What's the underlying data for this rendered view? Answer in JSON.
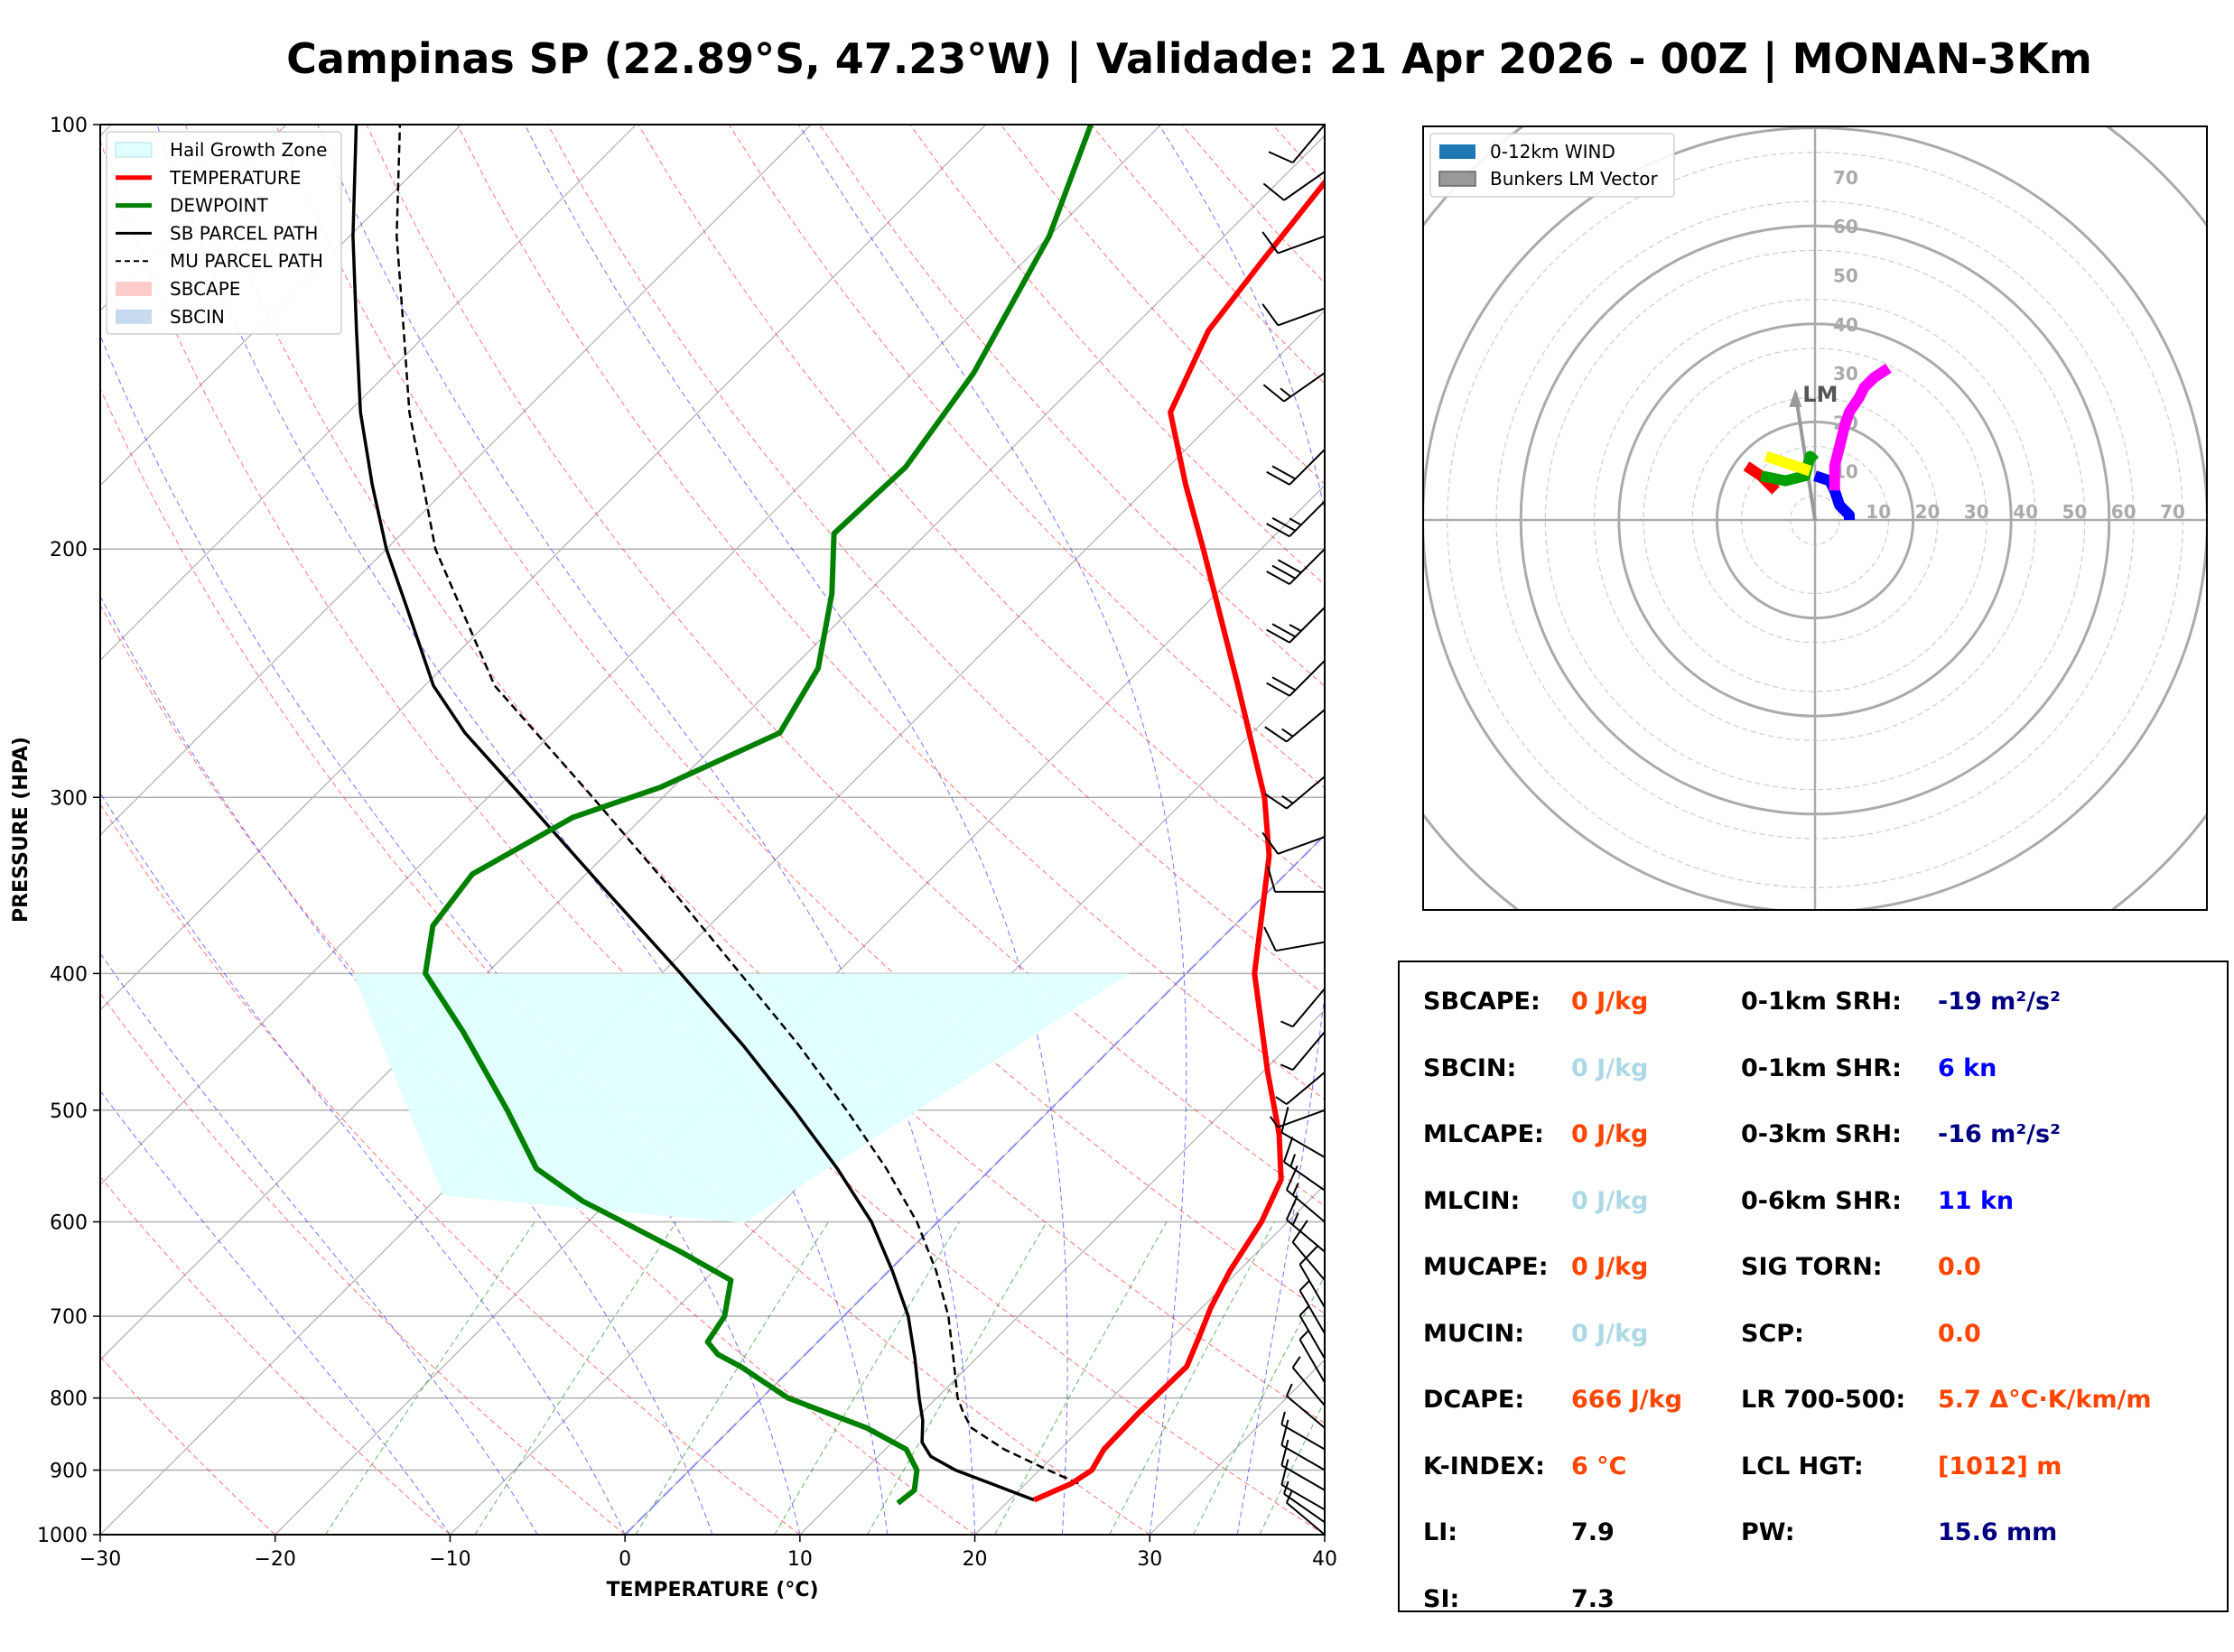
{
  "title": "Campinas SP (22.89°S, 47.23°W) | Validade: 21 Apr 2026 - 00Z | MONAN-3Km",
  "colors": {
    "temperature": "#ff0000",
    "dewpoint": "#008000",
    "sb_parcel": "#000000",
    "mu_parcel": "#000000",
    "hail_zone": "#e0ffff",
    "sbcape": "#ffcccc",
    "sbcin": "#c6dbef",
    "isobar": "#b0b0b0",
    "isotherm": "#b0b0b0",
    "dry_adiabat": "#ff0000",
    "moist_adiabat": "#0000ff",
    "mixing_ratio": "#008000",
    "lcl_line": "#8080ff",
    "hodo_0_1km": "#ff0000",
    "hodo_1_3km": "#00a000",
    "hodo_3_6km": "#0000ff",
    "hodo_6_9km": "#ffff00",
    "hodo_9_12km": "#ff00ff",
    "value_orange": "#ff4500",
    "value_lightblue": "#add8e6",
    "value_navy": "#000080",
    "value_blue": "#0000ff",
    "value_black": "#000000"
  },
  "chart_data": [
    {
      "type": "line",
      "name": "skew-t",
      "xlabel": "TEMPERATURE (°C)",
      "ylabel": "PRESSURE (HPA)",
      "xlim": [
        -30,
        40
      ],
      "ylim": [
        1000,
        100
      ],
      "y_scale": "log",
      "skew_degrees": 45,
      "x_ticks": [
        -30,
        -20,
        -10,
        0,
        10,
        20,
        30,
        40
      ],
      "x_tick_labels": [
        "−30",
        "−20",
        "−10",
        "0",
        "10",
        "20",
        "30",
        "40"
      ],
      "y_ticks": [
        1000,
        900,
        800,
        700,
        600,
        500,
        400,
        300,
        200,
        100
      ],
      "y_tick_labels": [
        "1000",
        "900",
        "800",
        "700",
        "600",
        "500",
        "400",
        "300",
        "200",
        "100"
      ],
      "grid": true,
      "legend_position": "top-left",
      "legend": [
        {
          "label": "Hail Growth Zone",
          "kind": "patch",
          "color": "#e0ffff"
        },
        {
          "label": "TEMPERATURE",
          "kind": "line",
          "color": "#ff0000",
          "width": 5
        },
        {
          "label": "DEWPOINT",
          "kind": "line",
          "color": "#008000",
          "width": 5
        },
        {
          "label": "SB PARCEL PATH",
          "kind": "line",
          "color": "#000000",
          "width": 3
        },
        {
          "label": "MU PARCEL PATH",
          "kind": "dash",
          "color": "#000000",
          "width": 2
        },
        {
          "label": "SBCAPE",
          "kind": "patch",
          "color": "#ffcccc"
        },
        {
          "label": "SBCIN",
          "kind": "patch",
          "color": "#c6dbef"
        }
      ],
      "temperature": [
        [
          945,
          21.4
        ],
        [
          920,
          22.6
        ],
        [
          900,
          23.0
        ],
        [
          870,
          22.5
        ],
        [
          820,
          22.4
        ],
        [
          760,
          22.5
        ],
        [
          720,
          21.4
        ],
        [
          690,
          20.5
        ],
        [
          650,
          19.5
        ],
        [
          600,
          18.5
        ],
        [
          560,
          17.2
        ],
        [
          520,
          14.5
        ],
        [
          470,
          10.3
        ],
        [
          400,
          3.9
        ],
        [
          330,
          -2.0
        ],
        [
          300,
          -5.6
        ],
        [
          250,
          -13.5
        ],
        [
          200,
          -23.3
        ],
        [
          180,
          -28.0
        ],
        [
          160,
          -33.0
        ],
        [
          140,
          -35.5
        ],
        [
          125,
          -36.4
        ],
        [
          100,
          -38.0
        ]
      ],
      "dewpoint": [
        [
          950,
          13.8
        ],
        [
          930,
          14.0
        ],
        [
          900,
          13.0
        ],
        [
          870,
          11.2
        ],
        [
          840,
          7.7
        ],
        [
          800,
          1.5
        ],
        [
          760,
          -3.0
        ],
        [
          745,
          -5.0
        ],
        [
          730,
          -6.3
        ],
        [
          700,
          -6.8
        ],
        [
          660,
          -8.5
        ],
        [
          630,
          -13.0
        ],
        [
          600,
          -18.0
        ],
        [
          580,
          -21.5
        ],
        [
          550,
          -26.0
        ],
        [
          500,
          -31.0
        ],
        [
          440,
          -38.0
        ],
        [
          400,
          -43.5
        ],
        [
          370,
          -45.8
        ],
        [
          340,
          -46.5
        ],
        [
          310,
          -44.0
        ],
        [
          295,
          -40.7
        ],
        [
          270,
          -37.0
        ],
        [
          243,
          -38.5
        ],
        [
          215,
          -42.0
        ],
        [
          195,
          -45.3
        ],
        [
          175,
          -45.0
        ],
        [
          150,
          -46.5
        ],
        [
          120,
          -50.0
        ],
        [
          100,
          -54.0
        ]
      ],
      "sb_parcel": [
        [
          945,
          21.4
        ],
        [
          920,
          18.0
        ],
        [
          900,
          15.2
        ],
        [
          880,
          13.0
        ],
        [
          860,
          11.7
        ],
        [
          830,
          10.5
        ],
        [
          800,
          9.0
        ],
        [
          750,
          6.5
        ],
        [
          700,
          3.7
        ],
        [
          650,
          0.2
        ],
        [
          600,
          -3.8
        ],
        [
          550,
          -8.8
        ],
        [
          500,
          -14.6
        ],
        [
          450,
          -21.2
        ],
        [
          400,
          -28.9
        ],
        [
          350,
          -37.8
        ],
        [
          300,
          -48.0
        ],
        [
          270,
          -55.0
        ],
        [
          250,
          -59.5
        ],
        [
          220,
          -65.5
        ],
        [
          200,
          -70.0
        ],
        [
          180,
          -74.5
        ],
        [
          160,
          -79.3
        ],
        [
          140,
          -84.2
        ],
        [
          120,
          -89.8
        ],
        [
          100,
          -96.0
        ]
      ],
      "mu_parcel": [
        [
          920,
          23.0
        ],
        [
          900,
          20.5
        ],
        [
          870,
          16.8
        ],
        [
          840,
          13.7
        ],
        [
          820,
          12.4
        ],
        [
          800,
          11.2
        ],
        [
          750,
          8.7
        ],
        [
          700,
          6.0
        ],
        [
          650,
          2.7
        ],
        [
          600,
          -1.2
        ],
        [
          550,
          -6.0
        ],
        [
          500,
          -11.6
        ],
        [
          450,
          -18.0
        ],
        [
          400,
          -25.5
        ],
        [
          350,
          -34.0
        ],
        [
          300,
          -44.0
        ],
        [
          250,
          -56.0
        ],
        [
          200,
          -67.2
        ],
        [
          160,
          -76.5
        ],
        [
          140,
          -81.5
        ],
        [
          120,
          -87.3
        ],
        [
          100,
          -93.5
        ]
      ],
      "hail_growth_zone": {
        "p_bottom": 575,
        "p_top": 400,
        "t_range": [
          -10,
          -30
        ]
      },
      "wind_barbs": [
        {
          "p": 1000,
          "dir": 310,
          "kt": 8
        },
        {
          "p": 980,
          "dir": 305,
          "kt": 8
        },
        {
          "p": 960,
          "dir": 300,
          "kt": 10
        },
        {
          "p": 930,
          "dir": 300,
          "kt": 10
        },
        {
          "p": 900,
          "dir": 300,
          "kt": 10
        },
        {
          "p": 870,
          "dir": 300,
          "kt": 8
        },
        {
          "p": 840,
          "dir": 310,
          "kt": 5
        },
        {
          "p": 810,
          "dir": 320,
          "kt": 5
        },
        {
          "p": 780,
          "dir": 330,
          "kt": 5
        },
        {
          "p": 750,
          "dir": 330,
          "kt": 5
        },
        {
          "p": 720,
          "dir": 330,
          "kt": 8
        },
        {
          "p": 690,
          "dir": 330,
          "kt": 10
        },
        {
          "p": 660,
          "dir": 320,
          "kt": 10
        },
        {
          "p": 630,
          "dir": 310,
          "kt": 15
        },
        {
          "p": 600,
          "dir": 310,
          "kt": 15
        },
        {
          "p": 570,
          "dir": 305,
          "kt": 15
        },
        {
          "p": 540,
          "dir": 300,
          "kt": 10
        },
        {
          "p": 500,
          "dir": 250,
          "kt": 5
        },
        {
          "p": 470,
          "dir": 230,
          "kt": 5
        },
        {
          "p": 440,
          "dir": 220,
          "kt": 5
        },
        {
          "p": 410,
          "dir": 220,
          "kt": 5
        },
        {
          "p": 380,
          "dir": 260,
          "kt": 10
        },
        {
          "p": 350,
          "dir": 270,
          "kt": 10
        },
        {
          "p": 320,
          "dir": 250,
          "kt": 10
        },
        {
          "p": 290,
          "dir": 230,
          "kt": 15
        },
        {
          "p": 260,
          "dir": 230,
          "kt": 15
        },
        {
          "p": 240,
          "dir": 225,
          "kt": 20
        },
        {
          "p": 220,
          "dir": 225,
          "kt": 25
        },
        {
          "p": 200,
          "dir": 225,
          "kt": 30
        },
        {
          "p": 185,
          "dir": 225,
          "kt": 25
        },
        {
          "p": 170,
          "dir": 225,
          "kt": 20
        },
        {
          "p": 150,
          "dir": 235,
          "kt": 15
        },
        {
          "p": 135,
          "dir": 250,
          "kt": 10
        },
        {
          "p": 120,
          "dir": 250,
          "kt": 10
        },
        {
          "p": 108,
          "dir": 235,
          "kt": 10
        },
        {
          "p": 100,
          "dir": 220,
          "kt": 10
        }
      ]
    },
    {
      "type": "line",
      "name": "hodograph",
      "rings": [
        10,
        20,
        30,
        40,
        50,
        60,
        70
      ],
      "ring_labels": [
        "10",
        "20",
        "30",
        "40",
        "50",
        "60",
        "70"
      ],
      "axis_range": [
        -80,
        80
      ],
      "legend_position": "top-left",
      "legend": [
        {
          "label": "0-12km WIND",
          "color": "#1f77b4"
        },
        {
          "label": "Bunkers LM Vector",
          "color": "#999999"
        }
      ],
      "bunkers_lm": {
        "label": "LM",
        "u": -4,
        "v": 26
      },
      "segments": [
        {
          "layer": "0-1km",
          "color": "#ff0000",
          "points": [
            [
              -8,
              6
            ],
            [
              -11,
              9
            ],
            [
              -14,
              11
            ]
          ]
        },
        {
          "layer": "1-3km",
          "color": "#00a000",
          "points": [
            [
              -11,
              9
            ],
            [
              -6,
              8
            ],
            [
              -2,
              9
            ],
            [
              -1,
              13
            ],
            [
              0,
              12
            ]
          ]
        },
        {
          "layer": "3-6km",
          "color": "#0000ff",
          "points": [
            [
              0,
              9
            ],
            [
              3,
              8
            ],
            [
              4,
              6
            ],
            [
              5,
              3
            ],
            [
              7,
              1
            ],
            [
              7,
              0
            ]
          ]
        },
        {
          "layer": "6-9km",
          "color": "#ffff00",
          "points": [
            [
              -10,
              13
            ],
            [
              -4,
              11
            ],
            [
              -1,
              10
            ]
          ]
        },
        {
          "layer": "9-12km",
          "color": "#ff00ff",
          "points": [
            [
              4,
              6
            ],
            [
              4,
              11
            ],
            [
              5,
              15
            ],
            [
              6,
              19
            ],
            [
              7,
              22
            ],
            [
              9,
              25
            ],
            [
              10,
              27
            ],
            [
              12,
              29
            ],
            [
              15,
              31
            ]
          ]
        }
      ]
    }
  ],
  "params": [
    {
      "label": "SBCAPE:",
      "value": "0 J/kg",
      "color": "#ff4500",
      "col": 0,
      "row": 0
    },
    {
      "label": "SBCIN:",
      "value": "0 J/kg",
      "color": "#add8e6",
      "col": 0,
      "row": 1
    },
    {
      "label": "MLCAPE:",
      "value": "0 J/kg",
      "color": "#ff4500",
      "col": 0,
      "row": 2
    },
    {
      "label": "MLCIN:",
      "value": "0 J/kg",
      "color": "#add8e6",
      "col": 0,
      "row": 3
    },
    {
      "label": "MUCAPE:",
      "value": "0 J/kg",
      "color": "#ff4500",
      "col": 0,
      "row": 4
    },
    {
      "label": "MUCIN:",
      "value": "0 J/kg",
      "color": "#add8e6",
      "col": 0,
      "row": 5
    },
    {
      "label": "DCAPE:",
      "value": "666 J/kg",
      "color": "#ff4500",
      "col": 0,
      "row": 6
    },
    {
      "label": "K-INDEX:",
      "value": "6 °C",
      "color": "#ff4500",
      "col": 0,
      "row": 7
    },
    {
      "label": "LI:",
      "value": "7.9",
      "color": "#000000",
      "col": 0,
      "row": 8
    },
    {
      "label": "SI:",
      "value": "7.3",
      "color": "#000000",
      "col": 0,
      "row": 9
    },
    {
      "label": "0-1km SRH:",
      "value": "-19 m²/s²",
      "color": "#000080",
      "col": 1,
      "row": 0
    },
    {
      "label": "0-1km SHR:",
      "value": "6 kn",
      "color": "#0000ff",
      "col": 1,
      "row": 1
    },
    {
      "label": "0-3km SRH:",
      "value": "-16 m²/s²",
      "color": "#000080",
      "col": 1,
      "row": 2
    },
    {
      "label": "0-6km SHR:",
      "value": "11 kn",
      "color": "#0000ff",
      "col": 1,
      "row": 3
    },
    {
      "label": "SIG TORN:",
      "value": "0.0",
      "color": "#ff4500",
      "col": 1,
      "row": 4
    },
    {
      "label": "SCP:",
      "value": "0.0",
      "color": "#ff4500",
      "col": 1,
      "row": 5
    },
    {
      "label": "LR 700-500:",
      "value": "5.7 Δ°C·K/km/m",
      "color": "#ff4500",
      "col": 1,
      "row": 6
    },
    {
      "label": "LCL HGT:",
      "value": "[1012] m",
      "color": "#ff4500",
      "col": 1,
      "row": 7
    },
    {
      "label": "PW:",
      "value": "15.6 mm",
      "color": "#000080",
      "col": 1,
      "row": 8
    }
  ]
}
